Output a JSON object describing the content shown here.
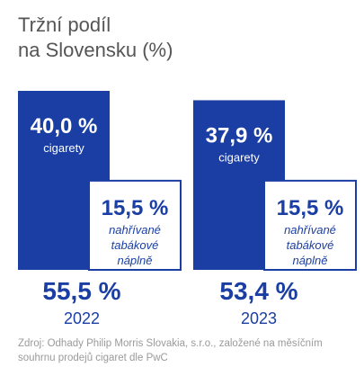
{
  "title_lines": [
    "Tržní podíl",
    "na Slovensku (%)"
  ],
  "chart_data": {
    "type": "bar",
    "title": "Tržní podíl na Slovensku (%)",
    "categories": [
      "2022",
      "2023"
    ],
    "series": [
      {
        "name": "cigarety",
        "values": [
          40.0,
          37.9
        ],
        "labels": [
          "40,0 %",
          "37,9 %"
        ],
        "color": "#1a3ea3"
      },
      {
        "name": "nahřívané tabákové náplně",
        "values": [
          15.5,
          15.5
        ],
        "labels": [
          "15,5 %",
          "15,5 %"
        ],
        "color": "#ffffff",
        "border": "#1a3ea3"
      }
    ],
    "heated_label_lines": [
      "nahřívané",
      "tabákové",
      "náplně"
    ],
    "totals": [
      55.5,
      53.4
    ],
    "total_labels": [
      "55,5 %",
      "53,4 %"
    ],
    "ylim": [
      0,
      60
    ]
  },
  "source": "Zdroj: Odhady Philip Morris Slovakia, s.r.o., založené na měsíčním souhrnu prodejů cigaret dle PwC"
}
